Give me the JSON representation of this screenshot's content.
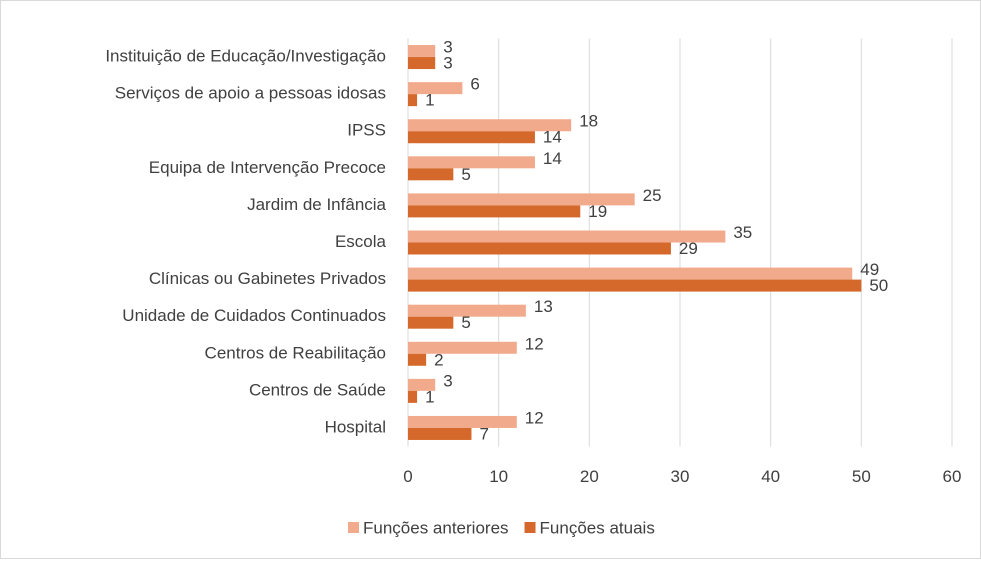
{
  "chart_data": {
    "type": "hbar",
    "categories": [
      "Instituição de Educação/Investigação",
      "Serviços de apoio a pessoas idosas",
      "IPSS",
      "Equipa de Intervenção Precoce",
      "Jardim de Infância",
      "Escola",
      "Clínicas ou Gabinetes Privados",
      "Unidade de Cuidados Continuados",
      "Centros de Reabilitação",
      "Centros de Saúde",
      "Hospital"
    ],
    "series": [
      {
        "name": "Funções anteriores",
        "color": "#f2aa8c",
        "values": [
          3,
          6,
          18,
          14,
          25,
          35,
          49,
          13,
          12,
          3,
          12
        ]
      },
      {
        "name": "Funções atuais",
        "color": "#d5692b",
        "values": [
          3,
          1,
          14,
          5,
          19,
          29,
          50,
          5,
          2,
          1,
          7
        ]
      }
    ],
    "xlim": [
      0,
      60
    ],
    "xticks": [
      0,
      10,
      20,
      30,
      40,
      50,
      60
    ],
    "grid": true,
    "legend": "bottom"
  }
}
